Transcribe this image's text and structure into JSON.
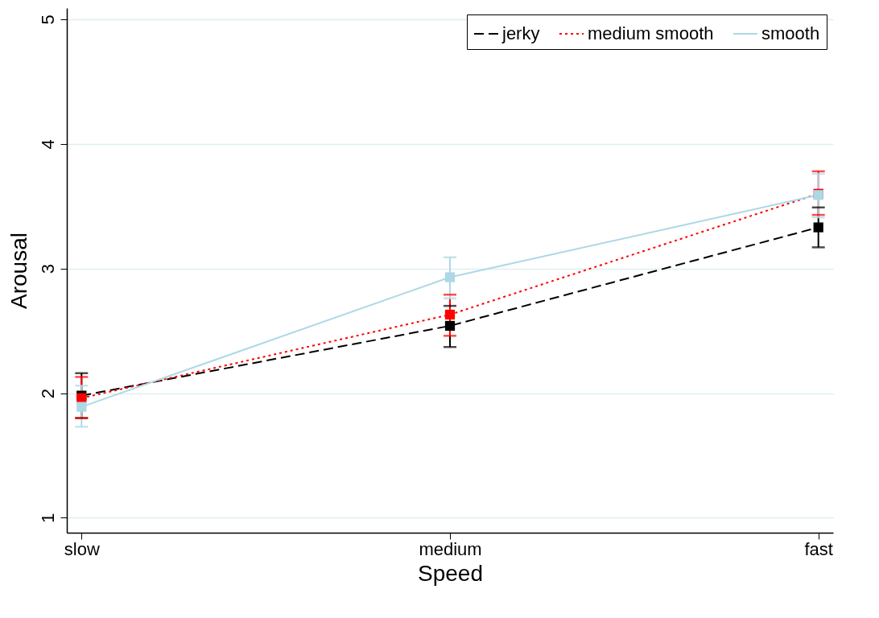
{
  "chart_data": {
    "type": "line",
    "xlabel": "Speed",
    "ylabel": "Arousal",
    "categories": [
      "slow",
      "medium",
      "fast"
    ],
    "series": [
      {
        "name": "jerky",
        "color": "#000000",
        "line_style": "dashed",
        "values": [
          1.98,
          2.54,
          3.33
        ],
        "errors": [
          [
            1.8,
            2.16
          ],
          [
            2.37,
            2.7
          ],
          [
            3.17,
            3.49
          ]
        ]
      },
      {
        "name": "medium smooth",
        "color": "#ff0000",
        "line_style": "dotted",
        "values": [
          1.96,
          2.63,
          3.6
        ],
        "errors": [
          [
            1.8,
            2.13
          ],
          [
            2.46,
            2.79
          ],
          [
            3.43,
            3.78
          ]
        ]
      },
      {
        "name": "smooth",
        "color": "#add8e6",
        "line_style": "solid",
        "values": [
          1.89,
          2.93,
          3.59
        ],
        "errors": [
          [
            1.73,
            2.06
          ],
          [
            2.76,
            3.09
          ],
          [
            3.41,
            3.76
          ]
        ]
      }
    ],
    "ylim": [
      0.88,
      5.09
    ],
    "yticks": [
      1,
      2,
      3,
      4,
      5
    ],
    "grid": "y",
    "legend": "top right",
    "marker": "square"
  }
}
